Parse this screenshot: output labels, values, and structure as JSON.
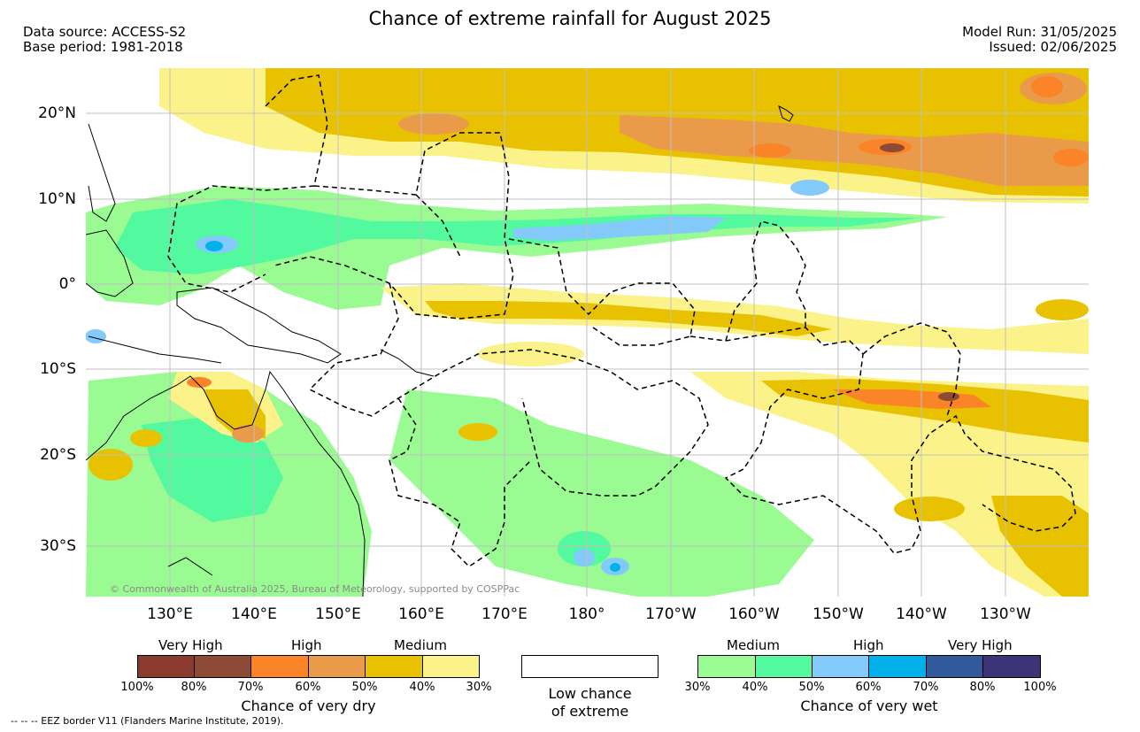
{
  "title": "Chance of extreme rainfall for August 2025",
  "meta": {
    "data_source": "Data source: ACCESS-S2",
    "base_period": "Base period: 1981-2018",
    "model_run": "Model Run: 31/05/2025",
    "issued": "Issued: 02/06/2025"
  },
  "map": {
    "lat_labels": [
      "20°N",
      "10°N",
      "0°",
      "10°S",
      "20°S",
      "30°S"
    ],
    "lon_labels": [
      "130°E",
      "140°E",
      "150°E",
      "160°E",
      "170°E",
      "180°",
      "170°W",
      "160°W",
      "150°W",
      "140°W",
      "130°W"
    ],
    "copyright": "© Commonwealth of Australia 2025, Bureau of Meteorology, supported by COSPPac"
  },
  "legend": {
    "dry": {
      "levels": [
        "Very High",
        "High",
        "Medium"
      ],
      "colors": [
        "#8b3a2f",
        "#8d4a36",
        "#fb8328",
        "#ea9b4a",
        "#e8c200",
        "#fbf28a"
      ],
      "ticks": [
        "100%",
        "80%",
        "70%",
        "60%",
        "50%",
        "40%",
        "30%"
      ],
      "caption": "Chance of very dry"
    },
    "low": {
      "color": "#ffffff",
      "caption_line1": "Low chance",
      "caption_line2": "of extreme"
    },
    "wet": {
      "levels": [
        "Medium",
        "High",
        "Very High"
      ],
      "colors": [
        "#9afb92",
        "#53f99e",
        "#83cafa",
        "#02b1ea",
        "#325a9b",
        "#3b3578"
      ],
      "ticks": [
        "30%",
        "40%",
        "50%",
        "60%",
        "70%",
        "80%",
        "100%"
      ],
      "caption": "Chance of very wet"
    }
  },
  "eez_note": "-- -- -- EEZ border V11 (Flanders Marine Institute, 2019)."
}
